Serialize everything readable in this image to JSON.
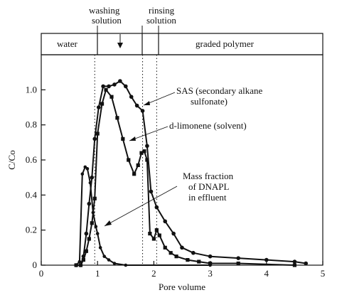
{
  "chart_data": {
    "type": "line",
    "xlabel": "Pore volume",
    "ylabel": "C/Co",
    "xlim": [
      0,
      5
    ],
    "ylim": [
      0,
      1.2
    ],
    "x_ticks": [
      "0",
      "1",
      "2",
      "3",
      "4",
      "5"
    ],
    "y_ticks": [
      "0",
      "0.2",
      "0.4",
      "0.6",
      "0.8",
      "1.0"
    ],
    "phases": [
      {
        "label": "water",
        "start": 0,
        "end": 0.95
      },
      {
        "label": "washing solution",
        "start": 0.95,
        "end": 1.8
      },
      {
        "label": "rinsing solution",
        "start": 1.8,
        "end": 2.05
      },
      {
        "label": "graded polymer",
        "start": 2.05,
        "end": 5
      }
    ],
    "annotations": {
      "sas": [
        "SAS (secondary alkane",
        "sulfonate)"
      ],
      "limonene": [
        "d-limonene (solvent)"
      ],
      "dnapl": [
        "Mass fraction",
        "of DNAPL",
        "in effluent"
      ]
    },
    "series": [
      {
        "marker": "circle",
        "points": [
          [
            0.62,
            0
          ],
          [
            0.7,
            0
          ],
          [
            0.75,
            0.05
          ],
          [
            0.8,
            0.18
          ],
          [
            0.85,
            0.35
          ],
          [
            0.9,
            0.5
          ],
          [
            0.95,
            0.72
          ],
          [
            1.02,
            0.9
          ],
          [
            1.1,
            1.02
          ],
          [
            1.2,
            1.02
          ],
          [
            1.3,
            1.03
          ],
          [
            1.4,
            1.05
          ],
          [
            1.5,
            1.02
          ],
          [
            1.6,
            0.96
          ],
          [
            1.7,
            0.91
          ],
          [
            1.8,
            0.88
          ],
          [
            1.88,
            0.68
          ],
          [
            1.95,
            0.42
          ],
          [
            2.05,
            0.33
          ],
          [
            2.2,
            0.25
          ],
          [
            2.35,
            0.18
          ],
          [
            2.5,
            0.1
          ],
          [
            2.7,
            0.07
          ],
          [
            3.0,
            0.05
          ],
          [
            3.5,
            0.04
          ],
          [
            4.0,
            0.03
          ],
          [
            4.5,
            0.02
          ],
          [
            4.7,
            0.01
          ]
        ]
      },
      {
        "marker": "square",
        "points": [
          [
            0.62,
            0
          ],
          [
            0.7,
            0
          ],
          [
            0.75,
            0.03
          ],
          [
            0.8,
            0.08
          ],
          [
            0.85,
            0.15
          ],
          [
            0.9,
            0.24
          ],
          [
            0.95,
            0.38
          ],
          [
            1.0,
            0.75
          ],
          [
            1.08,
            0.92
          ],
          [
            1.15,
            1.0
          ],
          [
            1.25,
            0.96
          ],
          [
            1.35,
            0.84
          ],
          [
            1.45,
            0.72
          ],
          [
            1.55,
            0.6
          ],
          [
            1.65,
            0.52
          ],
          [
            1.72,
            0.57
          ],
          [
            1.78,
            0.64
          ],
          [
            1.83,
            0.65
          ],
          [
            1.88,
            0.6
          ],
          [
            1.93,
            0.18
          ],
          [
            2.0,
            0.15
          ],
          [
            2.05,
            0.2
          ],
          [
            2.1,
            0.17
          ],
          [
            2.2,
            0.1
          ],
          [
            2.3,
            0.07
          ],
          [
            2.4,
            0.05
          ],
          [
            2.6,
            0.03
          ],
          [
            2.8,
            0.02
          ],
          [
            3.0,
            0.01
          ],
          [
            3.5,
            0.01
          ],
          [
            4.5,
            0.0
          ]
        ]
      },
      {
        "marker": "dot",
        "points": [
          [
            0.62,
            0
          ],
          [
            0.68,
            0.02
          ],
          [
            0.73,
            0.52
          ],
          [
            0.78,
            0.56
          ],
          [
            0.82,
            0.55
          ],
          [
            0.87,
            0.47
          ],
          [
            0.92,
            0.3
          ],
          [
            0.97,
            0.22
          ],
          [
            1.0,
            0.18
          ],
          [
            1.05,
            0.1
          ],
          [
            1.12,
            0.05
          ],
          [
            1.2,
            0.03
          ],
          [
            1.3,
            0.01
          ],
          [
            1.5,
            0.0
          ],
          [
            3.0,
            0.0
          ]
        ]
      }
    ]
  }
}
